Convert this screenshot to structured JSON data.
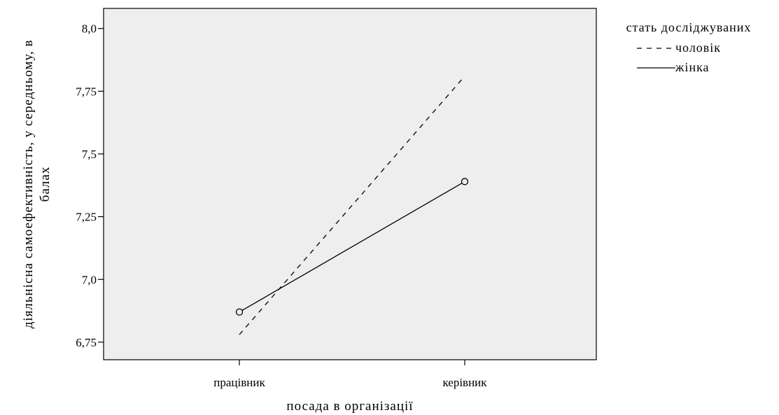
{
  "chart_data": {
    "type": "line",
    "categories": [
      "працівник",
      "керівник"
    ],
    "series": [
      {
        "name": "чоловік",
        "values": [
          6.78,
          7.81
        ],
        "dash": "dashed",
        "markers": false
      },
      {
        "name": "жінка",
        "values": [
          6.87,
          7.39
        ],
        "dash": "solid",
        "markers": true
      }
    ],
    "xlabel": "посада в організації",
    "ylabel_lines": [
      "діяльнісна самоефективність, у середньому, в",
      "балах"
    ],
    "y_ticks": [
      6.75,
      7.0,
      7.25,
      7.5,
      7.75,
      8.0
    ],
    "y_tick_labels": [
      "6,75",
      "7,0",
      "7,25",
      "7,5",
      "7,75",
      "8,0"
    ],
    "ylim": [
      6.68,
      8.08
    ],
    "legend": {
      "title": "стать досліджуваних",
      "position": "right"
    },
    "colors": {
      "plot_background": "#eeeeee",
      "line": "#000000"
    },
    "grid": false
  }
}
